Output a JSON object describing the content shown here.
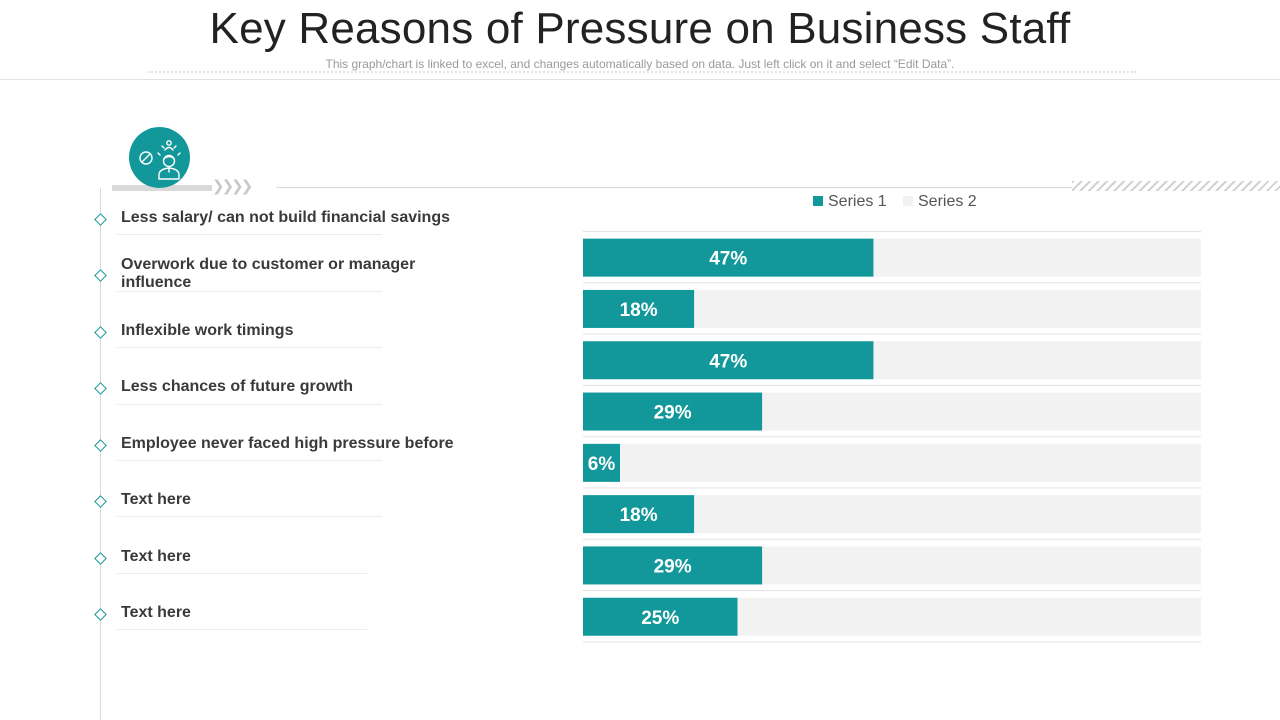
{
  "header": {
    "title": "Key Reasons of Pressure on Business Staff",
    "subtitle": "This graph/chart is linked to excel, and changes automatically based on data. Just left click on it and select “Edit Data”."
  },
  "icon": {
    "name": "stressed-person-icon"
  },
  "colors": {
    "accent": "#12989a",
    "track": "#f2f2f2",
    "rule": "#d9d9d9"
  },
  "reasons": [
    "Less salary/ can not build financial savings",
    "Overwork due to customer or manager influence",
    "Inflexible work timings",
    "Less chances of future growth",
    "Employee never faced high pressure before",
    "Text here",
    "Text here",
    "Text here"
  ],
  "chart_data": {
    "type": "bar",
    "orientation": "horizontal",
    "stacked": true,
    "categories": [
      "Less salary/ can not build financial savings",
      "Overwork due to customer or manager influence",
      "Inflexible work timings",
      "Less chances of future growth",
      "Employee never faced high pressure before",
      "Text here",
      "Text here",
      "Text here"
    ],
    "series": [
      {
        "name": "Series 1",
        "color": "#12989a",
        "values": [
          47,
          18,
          47,
          29,
          6,
          18,
          29,
          25
        ]
      },
      {
        "name": "Series 2",
        "color": "#f2f2f2",
        "values": [
          53,
          82,
          53,
          71,
          94,
          82,
          71,
          75
        ]
      }
    ],
    "data_labels": [
      "47%",
      "18%",
      "47%",
      "29%",
      "6%",
      "18%",
      "29%",
      "25%"
    ],
    "value_unit": "%",
    "xlim": [
      0,
      100
    ],
    "legend_position": "top-right",
    "grid": false
  }
}
